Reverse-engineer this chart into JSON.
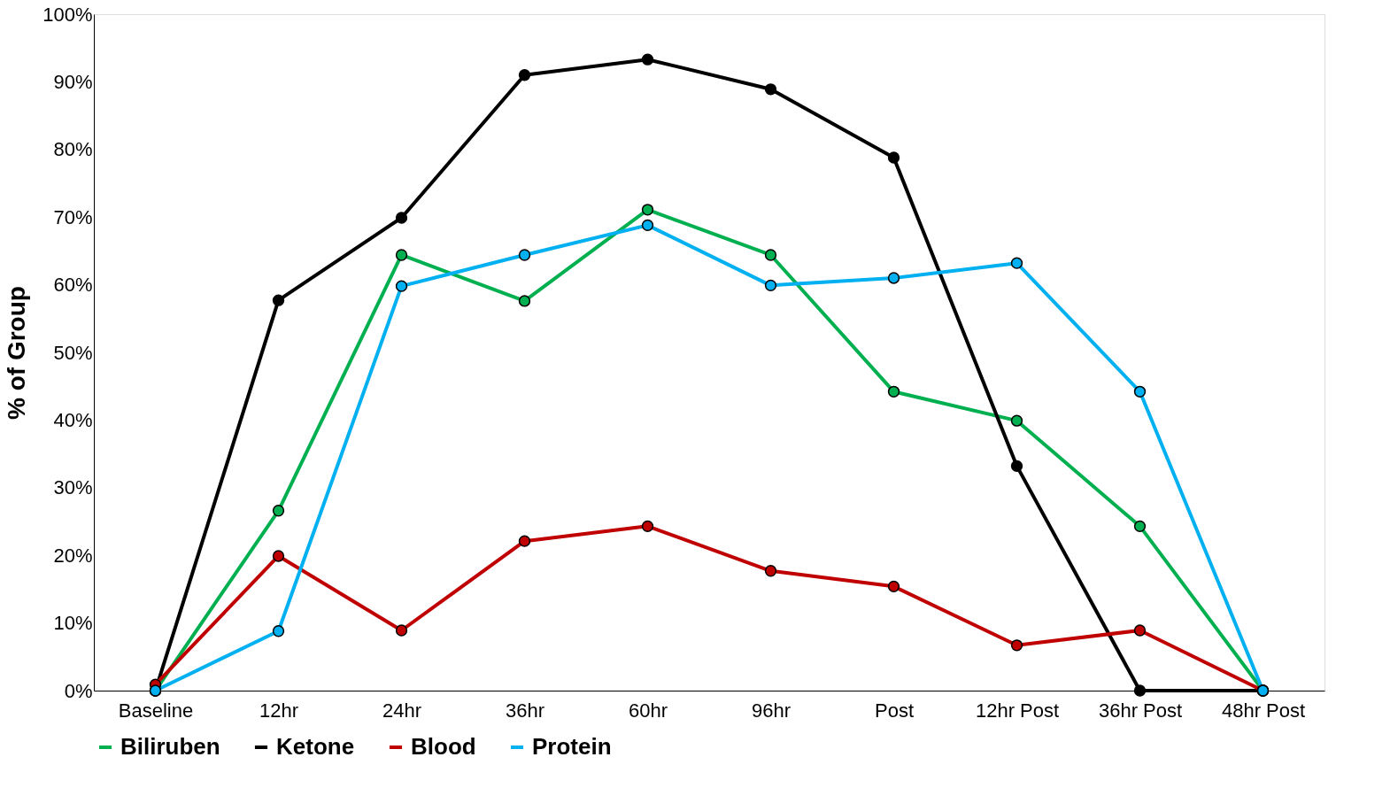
{
  "chart_data": {
    "type": "line",
    "ylabel": "% of Group",
    "categories": [
      "Baseline",
      "12hr",
      "24hr",
      "36hr",
      "60hr",
      "96hr",
      "Post",
      "12hr Post",
      "36hr Post",
      "48hr Post"
    ],
    "series": [
      {
        "name": "Biliruben",
        "color": "#00b050",
        "values": [
          0,
          26.6,
          64.4,
          57.6,
          71.1,
          64.4,
          44.2,
          39.9,
          24.3,
          0
        ]
      },
      {
        "name": "Ketone",
        "color": "#000000",
        "values": [
          0,
          57.7,
          69.9,
          91.0,
          93.3,
          88.9,
          78.8,
          33.2,
          0,
          0
        ]
      },
      {
        "name": "Blood",
        "color": "#c00000",
        "values": [
          0.9,
          19.9,
          8.9,
          22.1,
          24.3,
          17.7,
          15.4,
          6.7,
          8.9,
          0
        ]
      },
      {
        "name": "Protein",
        "color": "#00b0f0",
        "values": [
          0,
          8.8,
          59.8,
          64.4,
          68.8,
          59.9,
          61.0,
          63.2,
          44.2,
          0
        ]
      }
    ],
    "ylim": [
      0,
      100
    ],
    "yticks": [
      {
        "value": 0,
        "label": "0%"
      },
      {
        "value": 10,
        "label": "10%"
      },
      {
        "value": 20,
        "label": "20%"
      },
      {
        "value": 30,
        "label": "30%"
      },
      {
        "value": 40,
        "label": "40%"
      },
      {
        "value": 50,
        "label": "50%"
      },
      {
        "value": 60,
        "label": "60%"
      },
      {
        "value": 70,
        "label": "70%"
      },
      {
        "value": 80,
        "label": "80%"
      },
      {
        "value": 90,
        "label": "90%"
      },
      {
        "value": 100,
        "label": "100%"
      }
    ],
    "grid": false,
    "legend": "bottom",
    "marker": "circle",
    "line_style": "solid"
  }
}
